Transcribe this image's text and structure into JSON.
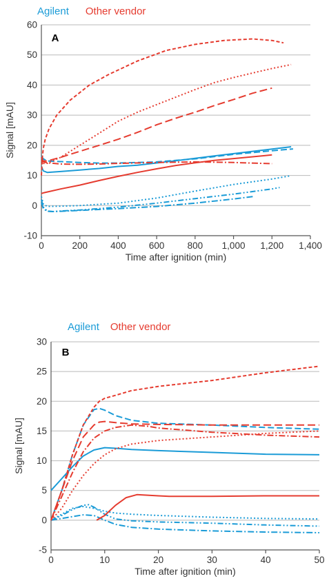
{
  "colors": {
    "agilent": "#1a9bd7",
    "other": "#e53b2f"
  },
  "chart_data": [
    {
      "type": "line",
      "panel_label": "A",
      "xlabel": "Time after ignition (min)",
      "ylabel": "Signal [mAU]",
      "xlim": [
        0,
        1400
      ],
      "ylim": [
        -10,
        60
      ],
      "xticks": [
        0,
        200,
        400,
        600,
        800,
        1000,
        1200,
        1400
      ],
      "xtick_labels": [
        "0",
        "200",
        "400",
        "600",
        "800",
        "1,000",
        "1,200",
        "1,400"
      ],
      "yticks": [
        -10,
        0,
        10,
        20,
        30,
        40,
        50,
        60
      ],
      "ytick_labels": [
        "-10",
        "0",
        "10",
        "20",
        "30",
        "40",
        "50",
        "60"
      ],
      "grid": "horizontal",
      "legend": {
        "position": "top-left",
        "entries": [
          "Agilent",
          "Other vendor"
        ]
      },
      "series": [
        {
          "group": "Agilent",
          "style": "solid",
          "x": [
            0,
            10,
            30,
            100,
            200,
            300,
            400,
            500,
            700,
            900,
            1100,
            1300
          ],
          "y": [
            13,
            11.5,
            11,
            11.3,
            11.8,
            12.3,
            13,
            13.4,
            14.9,
            16.5,
            18,
            19.5
          ]
        },
        {
          "group": "Agilent",
          "style": "dashed",
          "x": [
            0,
            10,
            30,
            100,
            200,
            300,
            400,
            600,
            800,
            1000,
            1200,
            1310
          ],
          "y": [
            16.5,
            15.5,
            14.8,
            14.6,
            14.3,
            14.1,
            14.1,
            14.5,
            15.5,
            17,
            18.2,
            18.8
          ]
        },
        {
          "group": "Agilent",
          "style": "dotted",
          "x": [
            0,
            10,
            30,
            100,
            200,
            400,
            600,
            800,
            1000,
            1200,
            1290
          ],
          "y": [
            3,
            0.5,
            -0.3,
            -0.2,
            0,
            0.8,
            2.5,
            4.8,
            7,
            8.8,
            9.8
          ]
        },
        {
          "group": "Agilent",
          "style": "dash-dot-dot",
          "x": [
            0,
            10,
            30,
            60,
            100,
            200,
            400,
            600,
            800,
            1000,
            1200,
            1240
          ],
          "y": [
            2,
            -0.5,
            -1.8,
            -2,
            -1.8,
            -1.5,
            -0.5,
            0.8,
            2.3,
            3.8,
            5.5,
            6
          ]
        },
        {
          "group": "Agilent",
          "style": "dash-dot",
          "x": [
            0,
            10,
            30,
            60,
            100,
            200,
            400,
            600,
            800,
            1000,
            1100
          ],
          "y": [
            1,
            -1,
            -1.9,
            -2,
            -1.9,
            -1.6,
            -1,
            -0.3,
            0.8,
            2.2,
            3
          ]
        },
        {
          "group": "Other vendor",
          "style": "solid",
          "x": [
            0,
            10,
            30,
            100,
            200,
            300,
            400,
            500,
            600,
            700,
            800,
            900,
            1000,
            1100,
            1200
          ],
          "y": [
            4,
            4.2,
            4.5,
            5.5,
            6.8,
            8.3,
            9.7,
            11,
            12.2,
            13.3,
            14.2,
            15,
            15.6,
            16.2,
            16.8
          ]
        },
        {
          "group": "Other vendor",
          "style": "dash-dot",
          "x": [
            0,
            10,
            30,
            100,
            200,
            300,
            400,
            600,
            800,
            1000,
            1200
          ],
          "y": [
            15,
            14.5,
            14.2,
            13.8,
            13.7,
            13.8,
            14,
            14.3,
            14.5,
            14.3,
            13.9
          ]
        },
        {
          "group": "Other vendor",
          "style": "short-dash",
          "x": [
            0,
            5,
            10,
            20,
            40,
            80,
            150,
            250,
            350,
            500,
            650,
            800,
            950,
            1100,
            1200,
            1260
          ],
          "y": [
            10,
            16,
            19,
            22,
            25.5,
            30,
            35,
            40,
            43.5,
            48,
            51.5,
            53.5,
            54.8,
            55.3,
            54.8,
            54
          ]
        },
        {
          "group": "Other vendor",
          "style": "dotted",
          "x": [
            0,
            10,
            30,
            100,
            200,
            300,
            400,
            500,
            600,
            700,
            800,
            900,
            1000,
            1100,
            1200,
            1300
          ],
          "y": [
            15,
            14,
            14,
            16,
            20,
            24,
            28,
            31,
            33.5,
            36,
            38.5,
            40.8,
            42.5,
            44,
            45.5,
            46.8
          ]
        },
        {
          "group": "Other vendor",
          "style": "long-dash",
          "x": [
            0,
            10,
            30,
            100,
            200,
            300,
            400,
            500,
            600,
            700,
            800,
            900,
            1000,
            1100,
            1200
          ],
          "y": [
            16,
            14.8,
            14.8,
            16,
            18,
            20,
            22,
            24.3,
            26.8,
            29,
            31,
            33.2,
            35.2,
            37.3,
            39
          ]
        }
      ]
    },
    {
      "type": "line",
      "panel_label": "B",
      "xlabel": "Time after ignition (min)",
      "ylabel": "Signal [mAU]",
      "xlim": [
        0,
        50
      ],
      "ylim": [
        -5,
        30
      ],
      "xticks": [
        0,
        10,
        20,
        30,
        40,
        50
      ],
      "xtick_labels": [
        "0",
        "10",
        "20",
        "30",
        "40",
        "50"
      ],
      "yticks": [
        -5,
        0,
        5,
        10,
        15,
        20,
        25,
        30
      ],
      "ytick_labels": [
        "-5",
        "0",
        "5",
        "10",
        "15",
        "20",
        "25",
        "30"
      ],
      "grid": "horizontal",
      "legend": {
        "position": "top-left",
        "entries": [
          "Agilent",
          "Other vendor"
        ]
      },
      "series": [
        {
          "group": "Agilent",
          "style": "solid",
          "x": [
            0,
            2,
            4,
            6,
            8,
            10,
            12,
            15,
            20,
            30,
            40,
            50
          ],
          "y": [
            5,
            7,
            9,
            10.8,
            11.8,
            12.2,
            12.1,
            11.9,
            11.7,
            11.4,
            11.1,
            11
          ]
        },
        {
          "group": "Agilent",
          "style": "dashed",
          "x": [
            0,
            2,
            4,
            6,
            8,
            9,
            10,
            12,
            15,
            20,
            30,
            40,
            50
          ],
          "y": [
            0,
            5,
            11,
            16,
            18.6,
            18.8,
            18.5,
            17.6,
            16.8,
            16.3,
            16,
            15.6,
            15.3
          ]
        },
        {
          "group": "Agilent",
          "style": "dotted",
          "x": [
            0,
            2,
            4,
            6,
            8,
            10,
            12,
            15,
            20,
            30,
            40,
            50
          ],
          "y": [
            0,
            1,
            2,
            2.3,
            2,
            1.5,
            1.2,
            1,
            0.8,
            0.5,
            0.3,
            0.2
          ]
        },
        {
          "group": "Agilent",
          "style": "dash-dot-dot",
          "x": [
            0,
            2,
            4,
            6,
            7,
            8,
            10,
            12,
            15,
            20,
            30,
            40,
            50
          ],
          "y": [
            0,
            0.8,
            1.8,
            2.5,
            2.6,
            2.2,
            1,
            0.2,
            -0.1,
            -0.3,
            -0.5,
            -0.8,
            -1
          ]
        },
        {
          "group": "Agilent",
          "style": "dash-dot",
          "x": [
            0,
            2,
            4,
            6,
            8,
            10,
            12,
            15,
            20,
            30,
            40,
            50
          ],
          "y": [
            0,
            0.3,
            0.6,
            0.9,
            0.8,
            0,
            -0.7,
            -1.2,
            -1.5,
            -1.8,
            -2,
            -2.1
          ]
        },
        {
          "group": "Other vendor",
          "style": "solid",
          "x": [
            8.5,
            10,
            12,
            14,
            16,
            18,
            20,
            22,
            30,
            40,
            50
          ],
          "y": [
            0,
            0.8,
            2.5,
            3.8,
            4.3,
            4.2,
            4.1,
            4,
            4,
            4.1,
            4.1
          ]
        },
        {
          "group": "Other vendor",
          "style": "short-dash",
          "x": [
            0,
            2,
            4,
            6,
            8,
            9,
            10,
            12,
            15,
            20,
            30,
            40,
            50
          ],
          "y": [
            0,
            5,
            11,
            16,
            19,
            20,
            20.5,
            21,
            21.8,
            22.5,
            23.5,
            24.8,
            25.9
          ]
        },
        {
          "group": "Other vendor",
          "style": "long-dash",
          "x": [
            0,
            2,
            4,
            6,
            8,
            9,
            10,
            12,
            15,
            20,
            30,
            40,
            50
          ],
          "y": [
            0,
            5,
            10,
            14,
            16,
            16.5,
            16.6,
            16.4,
            16.2,
            16.1,
            16,
            16,
            16
          ]
        },
        {
          "group": "Other vendor",
          "style": "dash-dot",
          "x": [
            0,
            2,
            4,
            6,
            8,
            10,
            12,
            15,
            18,
            20,
            30,
            40,
            50
          ],
          "y": [
            0,
            4,
            8,
            11.5,
            13.8,
            15,
            15.6,
            16,
            15.8,
            15.5,
            14.8,
            14.3,
            14
          ]
        },
        {
          "group": "Other vendor",
          "style": "dotted",
          "x": [
            0,
            2,
            4,
            6,
            8,
            10,
            12,
            15,
            20,
            30,
            40,
            50
          ],
          "y": [
            0,
            2,
            5,
            7.5,
            9.5,
            11,
            12,
            12.8,
            13.4,
            14,
            14.6,
            15
          ]
        }
      ]
    }
  ]
}
